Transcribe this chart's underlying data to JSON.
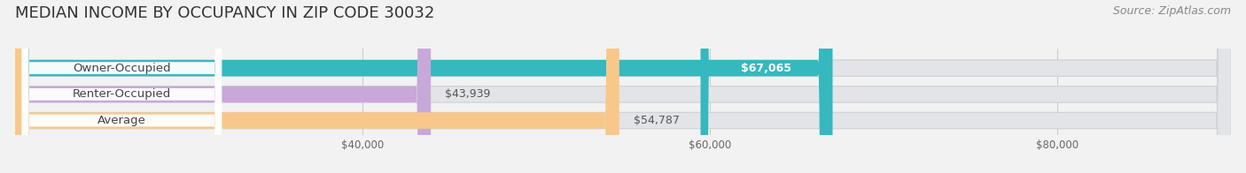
{
  "title": "MEDIAN INCOME BY OCCUPANCY IN ZIP CODE 30032",
  "source": "Source: ZipAtlas.com",
  "categories": [
    "Owner-Occupied",
    "Renter-Occupied",
    "Average"
  ],
  "values": [
    67065,
    43939,
    54787
  ],
  "bar_colors": [
    "#35b8be",
    "#c8a8d8",
    "#f8c88a"
  ],
  "bar_labels": [
    "$67,065",
    "$43,939",
    "$54,787"
  ],
  "bg_color": "#f2f2f2",
  "bar_bg_color": "#e2e4e8",
  "xlim_min": 20000,
  "xlim_max": 90000,
  "xticks": [
    40000,
    60000,
    80000
  ],
  "xtick_labels": [
    "$40,000",
    "$60,000",
    "$80,000"
  ],
  "title_fontsize": 13,
  "source_fontsize": 9,
  "bar_height": 0.62,
  "bar_label_fontsize": 9,
  "category_fontsize": 9.5,
  "label_on_bar_index": 0,
  "label_color_on_bar": "#ffffff",
  "label_color_outside": "#555555"
}
